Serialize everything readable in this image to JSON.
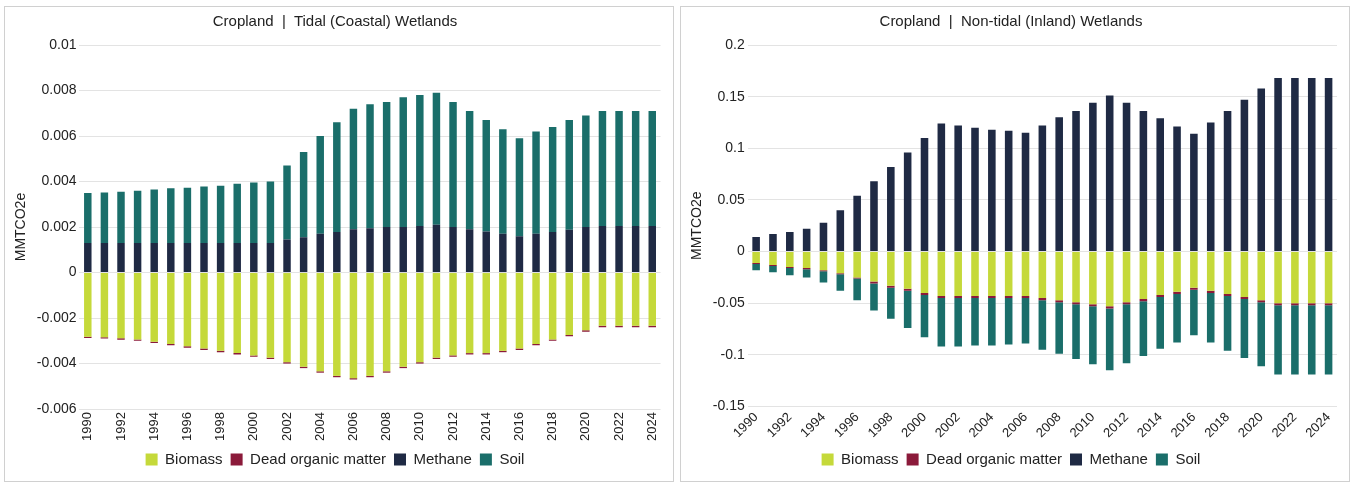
{
  "chart_data": [
    {
      "type": "bar",
      "title": "Cropland  |  Tidal (Coastal) Wetlands",
      "ylabel": "MMTCO2e",
      "stacked": true,
      "grid": "y",
      "legend": "bottom",
      "categories": [
        "1990",
        null,
        "1992",
        null,
        "1994",
        null,
        "1996",
        null,
        "1998",
        null,
        "2000",
        null,
        "2002",
        null,
        "2004",
        null,
        "2006",
        null,
        "2008",
        null,
        "2010",
        null,
        "2012",
        null,
        "2014",
        null,
        "2016",
        null,
        "2018",
        null,
        "2020",
        null,
        "2022",
        null,
        "2024"
      ],
      "ylim": [
        -0.006,
        0.01
      ],
      "yticks": [
        -0.006,
        -0.004,
        -0.002,
        0,
        0.002,
        0.004,
        0.006,
        0.008,
        0.01
      ],
      "series": [
        {
          "name": "Biomass",
          "color": "#c5d93a",
          "values": [
            -0.00282,
            -0.00284,
            -0.00289,
            -0.00294,
            -0.00304,
            -0.00314,
            -0.00324,
            -0.00334,
            -0.00344,
            -0.00354,
            -0.00364,
            -0.00374,
            -0.00394,
            -0.00414,
            -0.00434,
            -0.00454,
            -0.00464,
            -0.00454,
            -0.00434,
            -0.00414,
            -0.00394,
            -0.00374,
            -0.00364,
            -0.00354,
            -0.00354,
            -0.00344,
            -0.00334,
            -0.00314,
            -0.00294,
            -0.00274,
            -0.00254,
            -0.00234,
            -0.00234,
            -0.00234,
            -0.00234
          ]
        },
        {
          "name": "Dead organic matter",
          "color": "#8b1a3a",
          "values": [
            -6e-05,
            -6e-05,
            -6e-05,
            -6e-05,
            -6e-05,
            -6e-05,
            -6e-05,
            -6e-05,
            -6e-05,
            -6e-05,
            -6e-05,
            -6e-05,
            -6e-05,
            -6e-05,
            -6e-05,
            -6e-05,
            -6e-05,
            -6e-05,
            -6e-05,
            -6e-05,
            -6e-05,
            -6e-05,
            -6e-05,
            -6e-05,
            -6e-05,
            -6e-05,
            -6e-05,
            -6e-05,
            -6e-05,
            -6e-05,
            -6e-05,
            -6e-05,
            -6e-05,
            -6e-05,
            -6e-05
          ]
        },
        {
          "name": "Methane",
          "color": "#1f2a44",
          "values": [
            0.0013,
            0.0013,
            0.0013,
            0.0013,
            0.0013,
            0.0013,
            0.0013,
            0.0013,
            0.0013,
            0.0013,
            0.0013,
            0.0013,
            0.00145,
            0.00155,
            0.0017,
            0.00178,
            0.0019,
            0.00195,
            0.002,
            0.002,
            0.00205,
            0.0021,
            0.002,
            0.0019,
            0.0018,
            0.0017,
            0.0016,
            0.0017,
            0.00178,
            0.00188,
            0.002,
            0.00205,
            0.00205,
            0.00205,
            0.00205
          ]
        },
        {
          "name": "Soil",
          "color": "#1a6e6a",
          "values": [
            0.0022,
            0.00222,
            0.00225,
            0.0023,
            0.00235,
            0.0024,
            0.00243,
            0.00248,
            0.00252,
            0.0026,
            0.00266,
            0.0027,
            0.00325,
            0.00375,
            0.0043,
            0.00482,
            0.0053,
            0.00545,
            0.0055,
            0.0057,
            0.00575,
            0.0058,
            0.0055,
            0.0052,
            0.0049,
            0.0046,
            0.0043,
            0.0045,
            0.00462,
            0.00482,
            0.0049,
            0.00505,
            0.00505,
            0.00505,
            0.00505
          ]
        }
      ]
    },
    {
      "type": "bar",
      "title": "Cropland  |  Non-tidal (Inland) Wetlands",
      "ylabel": "MMTCO2e",
      "stacked": true,
      "grid": "y",
      "legend": "bottom",
      "categories": [
        "1990",
        null,
        "1992",
        null,
        "1994",
        null,
        "1996",
        null,
        "1998",
        null,
        "2000",
        null,
        "2002",
        null,
        "2004",
        null,
        "2006",
        null,
        "2008",
        null,
        "2010",
        null,
        "2012",
        null,
        "2014",
        null,
        "2016",
        null,
        "2018",
        null,
        "2020",
        null,
        "2022",
        null,
        "2024"
      ],
      "ylim": [
        -0.15,
        0.2
      ],
      "yticks": [
        -0.15,
        -0.1,
        -0.05,
        0,
        0.05,
        0.1,
        0.15,
        0.2
      ],
      "series": [
        {
          "name": "Biomass",
          "color": "#c5d93a",
          "values": [
            -0.011,
            -0.013,
            -0.015,
            -0.016,
            -0.018,
            -0.021,
            -0.025,
            -0.029,
            -0.033,
            -0.036,
            -0.04,
            -0.043,
            -0.043,
            -0.043,
            -0.043,
            -0.043,
            -0.043,
            -0.045,
            -0.047,
            -0.049,
            -0.051,
            -0.053,
            -0.049,
            -0.046,
            -0.042,
            -0.039,
            -0.035,
            -0.038,
            -0.041,
            -0.044,
            -0.047,
            -0.05,
            -0.05,
            -0.05,
            -0.05
          ]
        },
        {
          "name": "Dead organic matter",
          "color": "#8b1a3a",
          "values": [
            -0.001,
            -0.001,
            -0.001,
            -0.001,
            -0.001,
            -0.001,
            -0.001,
            -0.002,
            -0.002,
            -0.002,
            -0.002,
            -0.002,
            -0.002,
            -0.002,
            -0.002,
            -0.002,
            -0.002,
            -0.002,
            -0.002,
            -0.002,
            -0.002,
            -0.002,
            -0.002,
            -0.002,
            -0.002,
            -0.002,
            -0.002,
            -0.002,
            -0.002,
            -0.002,
            -0.002,
            -0.002,
            -0.002,
            -0.002,
            -0.002
          ]
        },
        {
          "name": "Methane",
          "color": "#1f2a44",
          "values": [
            0.014,
            0.017,
            0.019,
            0.022,
            0.028,
            0.04,
            0.054,
            0.068,
            0.082,
            0.096,
            0.11,
            0.124,
            0.122,
            0.12,
            0.118,
            0.117,
            0.115,
            0.122,
            0.13,
            0.136,
            0.144,
            0.151,
            0.144,
            0.136,
            0.129,
            0.121,
            0.114,
            0.125,
            0.136,
            0.147,
            0.158,
            0.168,
            0.168,
            0.168,
            0.168
          ]
        },
        {
          "name": "Soil",
          "color": "#1a6e6a",
          "values": [
            -0.006,
            -0.006,
            -0.007,
            -0.008,
            -0.011,
            -0.016,
            -0.021,
            -0.026,
            -0.03,
            -0.036,
            -0.041,
            -0.047,
            -0.047,
            -0.046,
            -0.046,
            -0.045,
            -0.044,
            -0.048,
            -0.05,
            -0.053,
            -0.056,
            -0.06,
            -0.057,
            -0.053,
            -0.05,
            -0.047,
            -0.044,
            -0.048,
            -0.053,
            -0.057,
            -0.062,
            -0.067,
            -0.067,
            -0.067,
            -0.067
          ]
        }
      ]
    }
  ]
}
